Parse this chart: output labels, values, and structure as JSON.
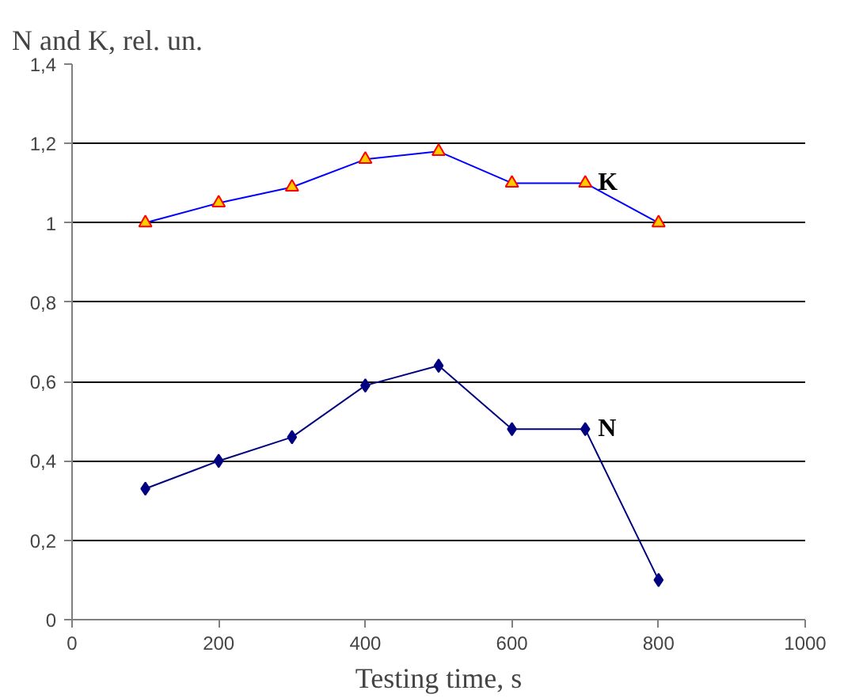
{
  "chart_data": {
    "type": "line",
    "ylabel": "N and K, rel. un.",
    "xlabel": "Testing time, s",
    "x": [
      100,
      200,
      300,
      400,
      500,
      600,
      700,
      800
    ],
    "series": [
      {
        "name": "K",
        "color": "#0000ff",
        "marker": "triangle",
        "values": [
          1.0,
          1.05,
          1.09,
          1.16,
          1.18,
          1.1,
          1.1,
          1.0
        ]
      },
      {
        "name": "N",
        "color": "#000080",
        "marker": "diamond",
        "values": [
          0.33,
          0.4,
          0.46,
          0.59,
          0.64,
          0.48,
          0.48,
          0.1
        ]
      }
    ],
    "xlim": [
      0,
      1000
    ],
    "xticks": [
      0,
      200,
      400,
      600,
      800,
      1000
    ],
    "ylim": [
      0,
      1.4
    ],
    "yticks": [
      {
        "value": 0,
        "label": "0"
      },
      {
        "value": 0.2,
        "label": "0,2"
      },
      {
        "value": 0.4,
        "label": "0,4"
      },
      {
        "value": 0.6,
        "label": "0,6"
      },
      {
        "value": 0.8,
        "label": "0,8"
      },
      {
        "value": 1,
        "label": "1"
      },
      {
        "value": 1.2,
        "label": "1,2"
      },
      {
        "value": 1.4,
        "label": "1,4"
      }
    ],
    "grid": "y",
    "line_style": "solid"
  }
}
